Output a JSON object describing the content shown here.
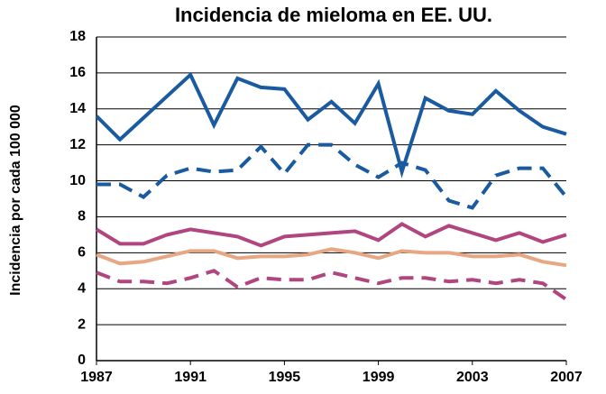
{
  "chart_data": {
    "type": "line",
    "title": "Incidencia de mieloma en EE. UU.",
    "y_label": "Incidencia por cada 100 000",
    "x": [
      1987,
      1988,
      1989,
      1990,
      1991,
      1992,
      1993,
      1994,
      1995,
      1996,
      1997,
      1998,
      1999,
      2000,
      2001,
      2002,
      2003,
      2004,
      2005,
      2006,
      2007
    ],
    "xlim": [
      1987,
      2007
    ],
    "xticks": [
      1987,
      1991,
      1995,
      1999,
      2003,
      2007
    ],
    "ylim": [
      0,
      18
    ],
    "yticks": [
      0,
      2,
      4,
      6,
      8,
      10,
      12,
      14,
      16,
      18
    ],
    "grid": true,
    "series": [
      {
        "color": "#1a5aa0",
        "style": "solid",
        "values": [
          13.6,
          12.3,
          13.5,
          14.7,
          15.9,
          13.1,
          15.7,
          15.2,
          15.1,
          13.4,
          14.4,
          13.2,
          15.4,
          10.5,
          14.6,
          13.9,
          13.7,
          15.0,
          13.9,
          13.0,
          12.6
        ]
      },
      {
        "color": "#1a5aa0",
        "style": "dashed",
        "values": [
          9.8,
          9.8,
          9.1,
          10.3,
          10.7,
          10.5,
          10.6,
          11.9,
          10.4,
          12.0,
          12.0,
          10.9,
          10.2,
          11.0,
          10.6,
          8.9,
          8.5,
          10.3,
          10.7,
          10.7,
          9.1
        ]
      },
      {
        "color": "#b0457f",
        "style": "solid",
        "values": [
          7.3,
          6.5,
          6.5,
          7.0,
          7.3,
          7.1,
          6.9,
          6.4,
          6.9,
          7.0,
          7.1,
          7.2,
          6.7,
          7.6,
          6.9,
          7.5,
          7.1,
          6.7,
          7.1,
          6.6,
          7.0
        ]
      },
      {
        "color": "#e8a783",
        "style": "solid",
        "values": [
          5.9,
          5.4,
          5.5,
          5.8,
          6.1,
          6.1,
          5.7,
          5.8,
          5.8,
          5.9,
          6.2,
          6.0,
          5.7,
          6.1,
          6.0,
          6.0,
          5.8,
          5.8,
          5.9,
          5.5,
          5.3
        ]
      },
      {
        "color": "#b0457f",
        "style": "dashed",
        "values": [
          4.9,
          4.4,
          4.4,
          4.3,
          4.6,
          5.0,
          4.1,
          4.6,
          4.5,
          4.5,
          4.9,
          4.6,
          4.3,
          4.6,
          4.6,
          4.4,
          4.5,
          4.3,
          4.5,
          4.3,
          3.4
        ]
      }
    ]
  }
}
